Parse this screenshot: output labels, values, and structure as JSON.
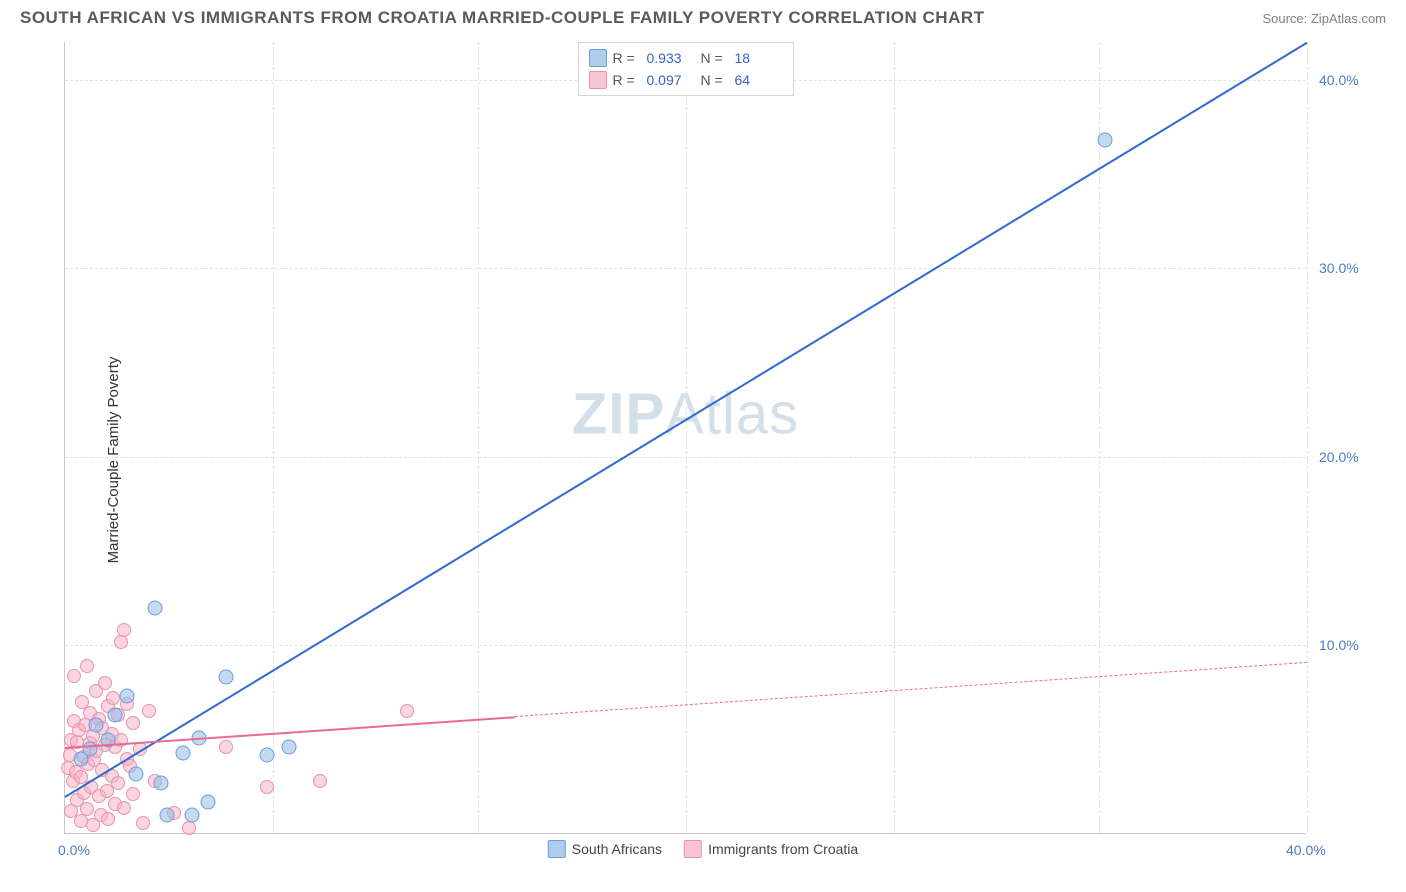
{
  "header": {
    "title": "SOUTH AFRICAN VS IMMIGRANTS FROM CROATIA MARRIED-COUPLE FAMILY POVERTY CORRELATION CHART",
    "source": "Source: ZipAtlas.com"
  },
  "watermark": {
    "bold": "ZIP",
    "light": "Atlas"
  },
  "chart": {
    "type": "scatter-with-regression",
    "ylabel": "Married-Couple Family Poverty",
    "xlim": [
      0,
      40
    ],
    "ylim": [
      0,
      42
    ],
    "yticks": [
      {
        "v": 10,
        "label": "10.0%"
      },
      {
        "v": 20,
        "label": "20.0%"
      },
      {
        "v": 30,
        "label": "30.0%"
      },
      {
        "v": 40,
        "label": "40.0%"
      }
    ],
    "xticks_origin": "0.0%",
    "xticks_end": "40.0%",
    "xgrid_positions": [
      6.7,
      13.3,
      20,
      26.7,
      33.3,
      40
    ],
    "colors": {
      "blue_fill": "#94bae8",
      "blue_stroke": "#2e6bd1",
      "pink_fill": "#f7b2c6",
      "pink_stroke": "#e86a93",
      "axis_label": "#4a7cc9",
      "grid": "#e2e2e2",
      "text": "#5a5a5a"
    },
    "legend_top": {
      "rows": [
        {
          "swatch": "blue",
          "r_label": "R =",
          "r": "0.933",
          "n_label": "N =",
          "n": "18"
        },
        {
          "swatch": "pink",
          "r_label": "R =",
          "r": "0.097",
          "n_label": "N =",
          "n": "64"
        }
      ]
    },
    "legend_bottom": {
      "items": [
        {
          "swatch": "blue",
          "label": "South Africans"
        },
        {
          "swatch": "pink",
          "label": "Immigrants from Croatia"
        }
      ]
    },
    "series": {
      "blue": {
        "marker_size": 15,
        "points": [
          [
            0.5,
            4.0
          ],
          [
            0.8,
            4.5
          ],
          [
            1.0,
            5.8
          ],
          [
            1.4,
            5.0
          ],
          [
            1.6,
            6.3
          ],
          [
            2.0,
            7.3
          ],
          [
            2.3,
            3.2
          ],
          [
            2.9,
            12.0
          ],
          [
            3.1,
            2.7
          ],
          [
            3.3,
            1.0
          ],
          [
            3.8,
            4.3
          ],
          [
            4.1,
            1.0
          ],
          [
            4.3,
            5.1
          ],
          [
            4.6,
            1.7
          ],
          [
            5.2,
            8.3
          ],
          [
            6.5,
            4.2
          ],
          [
            7.2,
            4.6
          ],
          [
            33.5,
            36.8
          ]
        ],
        "regression": {
          "x1": 0,
          "y1": 2.0,
          "x2": 40,
          "y2": 42.0,
          "solid_until": 40
        }
      },
      "pink": {
        "marker_size": 14,
        "points": [
          [
            0.1,
            3.5
          ],
          [
            0.15,
            4.2
          ],
          [
            0.2,
            1.2
          ],
          [
            0.2,
            5.0
          ],
          [
            0.25,
            2.8
          ],
          [
            0.3,
            6.0
          ],
          [
            0.3,
            8.4
          ],
          [
            0.35,
            3.3
          ],
          [
            0.4,
            4.9
          ],
          [
            0.4,
            1.8
          ],
          [
            0.45,
            5.5
          ],
          [
            0.5,
            0.7
          ],
          [
            0.5,
            3.0
          ],
          [
            0.55,
            7.0
          ],
          [
            0.6,
            4.1
          ],
          [
            0.6,
            2.2
          ],
          [
            0.65,
            5.8
          ],
          [
            0.7,
            1.3
          ],
          [
            0.7,
            8.9
          ],
          [
            0.75,
            3.7
          ],
          [
            0.8,
            4.8
          ],
          [
            0.8,
            6.4
          ],
          [
            0.85,
            2.5
          ],
          [
            0.9,
            5.2
          ],
          [
            0.9,
            0.5
          ],
          [
            0.95,
            3.9
          ],
          [
            1.0,
            7.6
          ],
          [
            1.0,
            4.4
          ],
          [
            1.1,
            2.0
          ],
          [
            1.1,
            6.1
          ],
          [
            1.15,
            1.0
          ],
          [
            1.2,
            5.6
          ],
          [
            1.2,
            3.4
          ],
          [
            1.3,
            8.0
          ],
          [
            1.3,
            4.7
          ],
          [
            1.35,
            2.3
          ],
          [
            1.4,
            6.8
          ],
          [
            1.4,
            0.8
          ],
          [
            1.5,
            5.3
          ],
          [
            1.5,
            3.1
          ],
          [
            1.55,
            7.2
          ],
          [
            1.6,
            1.6
          ],
          [
            1.6,
            4.6
          ],
          [
            1.7,
            6.3
          ],
          [
            1.7,
            2.7
          ],
          [
            1.8,
            5.0
          ],
          [
            1.8,
            10.2
          ],
          [
            1.9,
            10.8
          ],
          [
            1.9,
            1.4
          ],
          [
            2.0,
            4.0
          ],
          [
            2.0,
            6.9
          ],
          [
            2.1,
            3.6
          ],
          [
            2.2,
            5.9
          ],
          [
            2.2,
            2.1
          ],
          [
            2.4,
            4.5
          ],
          [
            2.5,
            0.6
          ],
          [
            2.7,
            6.5
          ],
          [
            2.9,
            2.8
          ],
          [
            3.5,
            1.1
          ],
          [
            4.0,
            0.3
          ],
          [
            5.2,
            4.6
          ],
          [
            6.5,
            2.5
          ],
          [
            8.2,
            2.8
          ],
          [
            11.0,
            6.5
          ]
        ],
        "regression": {
          "x1": 0,
          "y1": 4.6,
          "x2": 40,
          "y2": 9.1,
          "solid_until": 14.5
        }
      }
    }
  }
}
